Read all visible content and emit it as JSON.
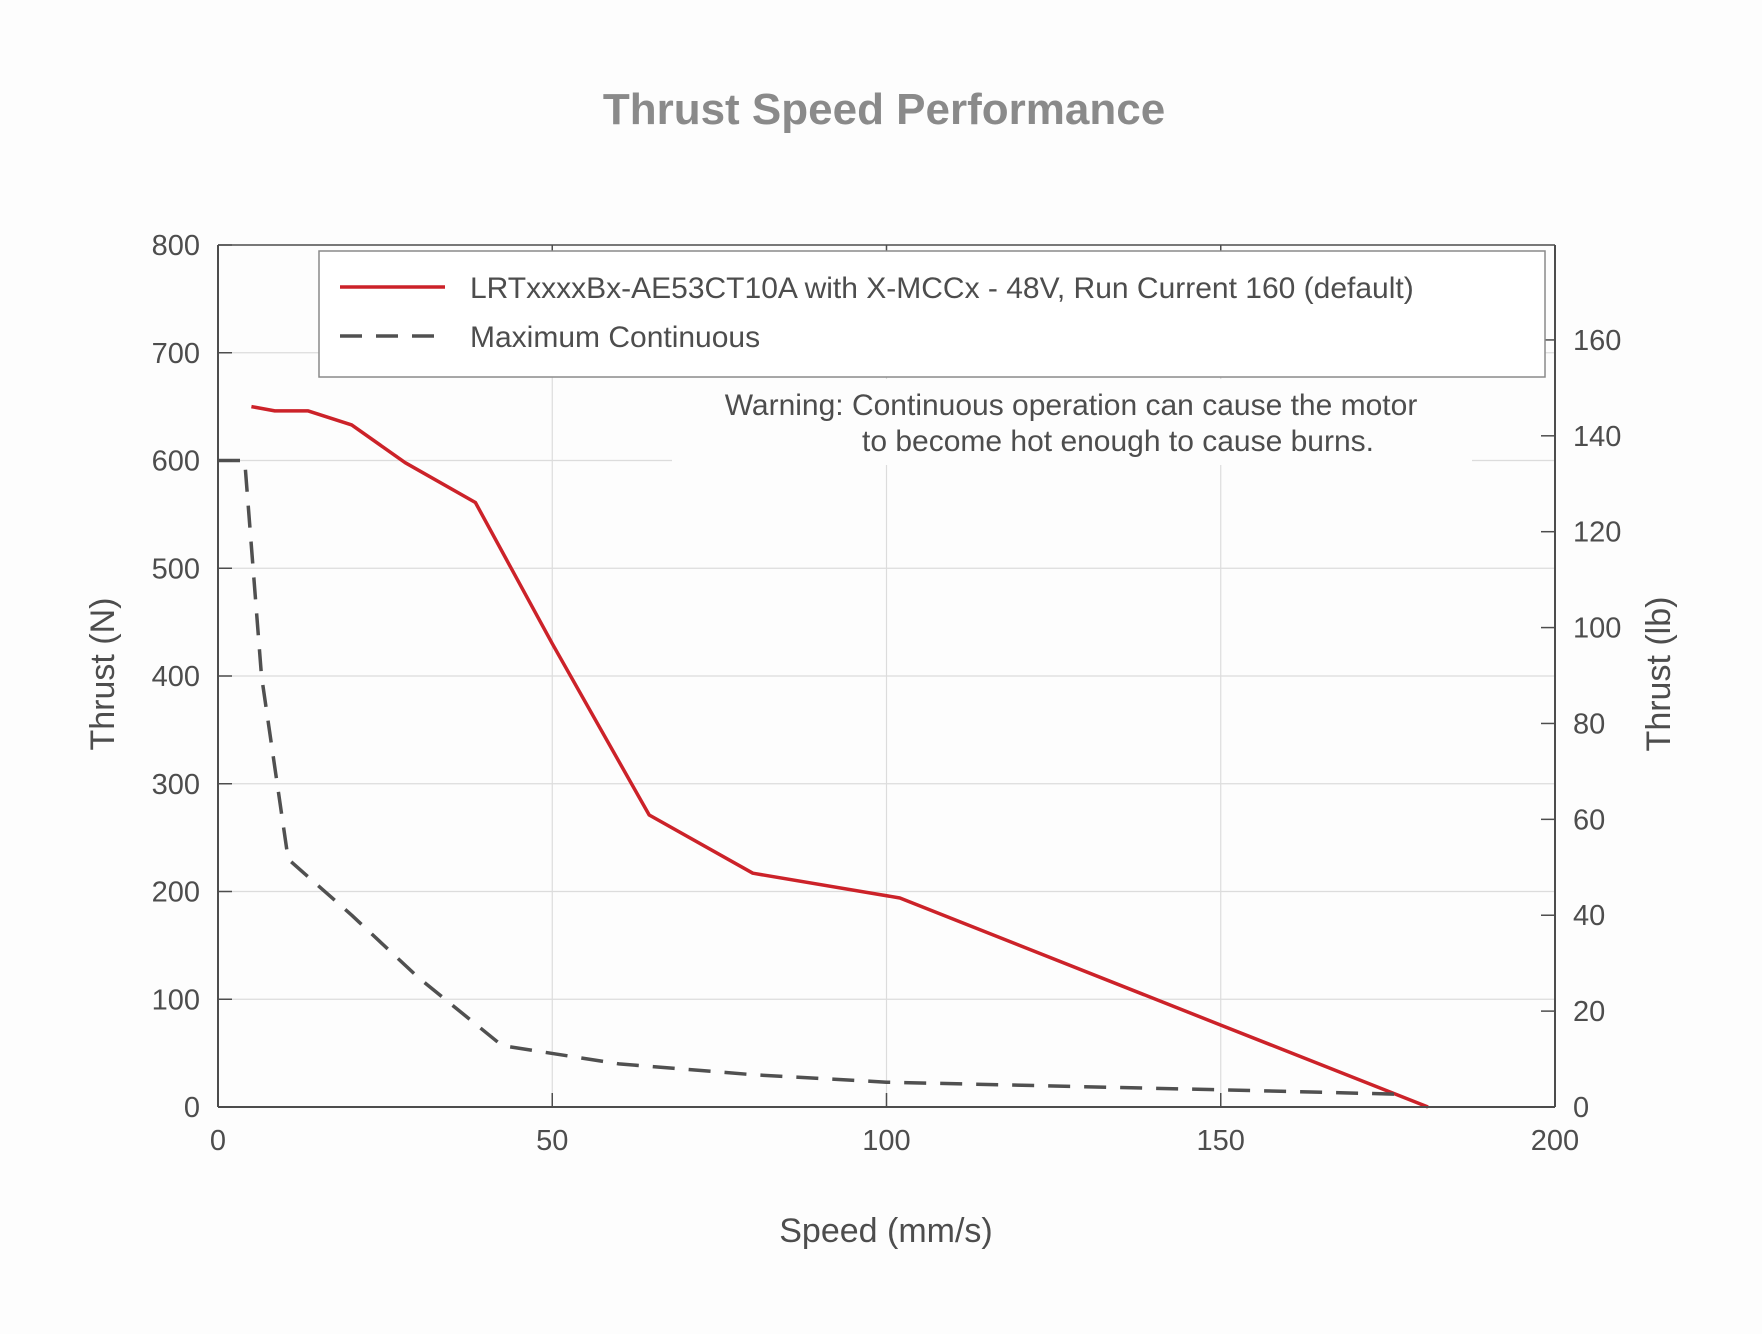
{
  "chart_data": {
    "type": "line",
    "title": "Thrust Speed Performance",
    "xlabel": "Speed (mm/s)",
    "ylabel": "Thrust (N)",
    "ylabel_right": "Thrust (lb)",
    "xlim": [
      0,
      200
    ],
    "ylim": [
      0,
      800
    ],
    "ylim_right": [
      0,
      179.8
    ],
    "x_ticks": [
      0,
      50,
      100,
      150,
      200
    ],
    "y_ticks": [
      0,
      100,
      200,
      300,
      400,
      500,
      600,
      700,
      800
    ],
    "y_ticks_right": [
      0,
      20,
      40,
      60,
      80,
      100,
      120,
      140,
      160
    ],
    "grid": true,
    "legend_position": "top-right",
    "series": [
      {
        "name": "LRTxxxxBx-AE53CT10A with X-MCCx - 48V, Run Current 160 (default)",
        "style": "solid",
        "color": "#cc2229",
        "x": [
          5,
          8.5,
          13.5,
          20,
          28,
          38.5,
          50,
          64.5,
          80,
          102,
          150,
          181
        ],
        "y": [
          650,
          646,
          646,
          633,
          598,
          561,
          430,
          271,
          217,
          194,
          76,
          0
        ]
      },
      {
        "name": "Maximum Continuous",
        "style": "dashed",
        "color": "#505050",
        "x": [
          0,
          4,
          6.5,
          10.5,
          20,
          30,
          42.5,
          60,
          80,
          100,
          150,
          176
        ],
        "y": [
          600,
          600,
          400,
          230,
          178,
          120,
          57,
          40,
          30,
          23,
          16,
          12
        ]
      }
    ],
    "annotation": {
      "line1": "Warning: Continuous operation can cause the motor",
      "line2": "to become hot enough to cause burns."
    }
  }
}
